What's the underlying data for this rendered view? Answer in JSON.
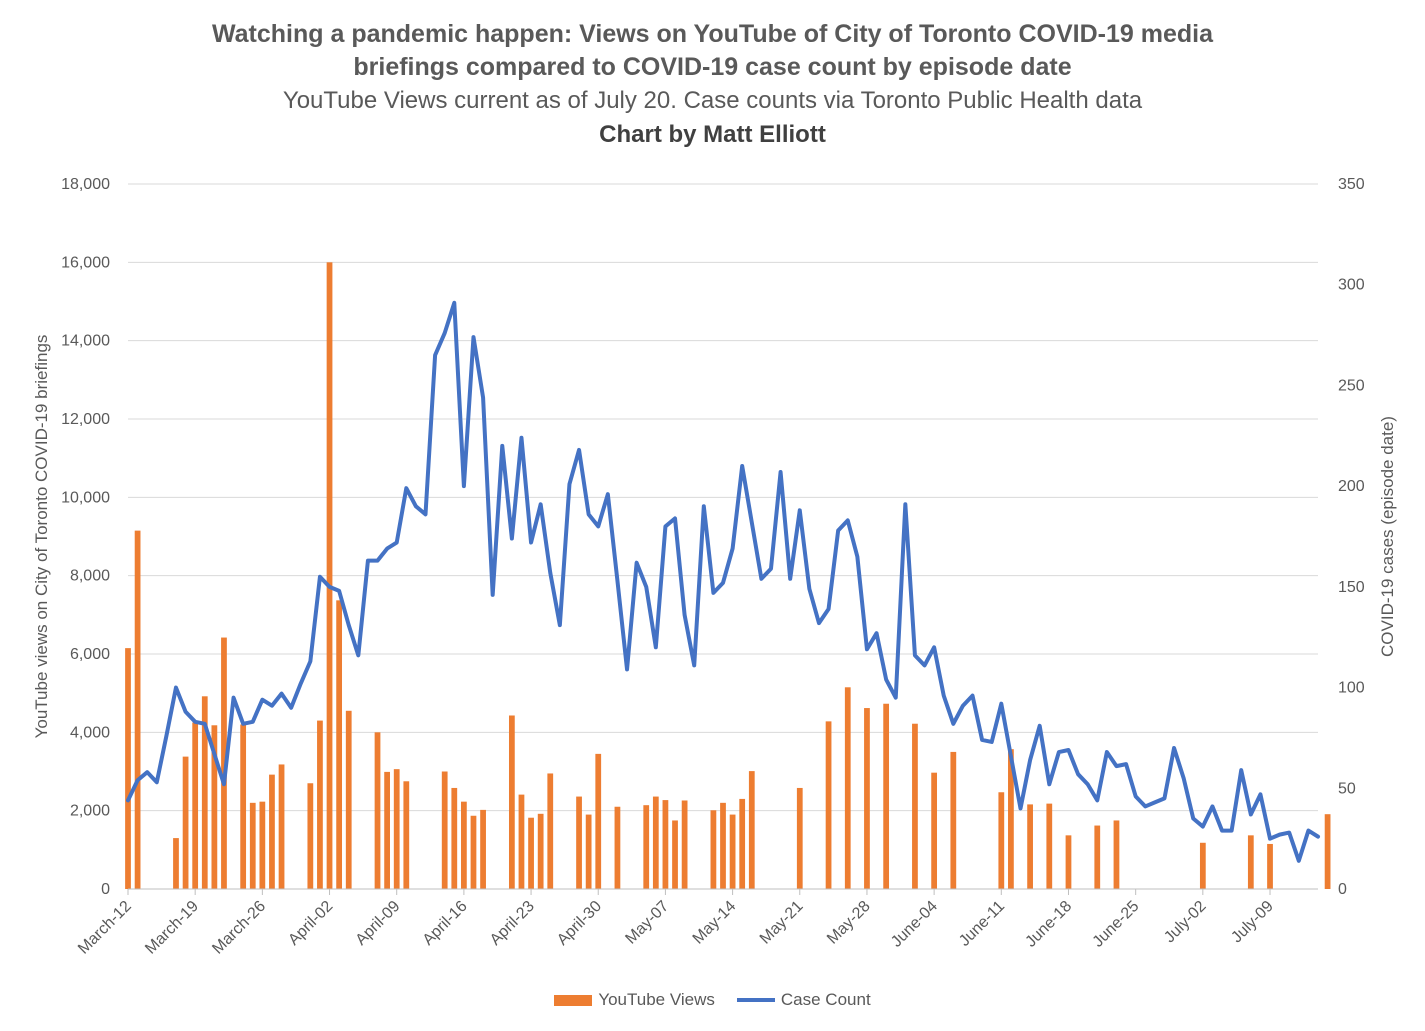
{
  "chart_data": {
    "type": "bar+line",
    "title_line1": "Watching a pandemic happen: Views on YouTube of City of Toronto COVID-19 media",
    "title_line2": "briefings compared to COVID-19 case count by episode date",
    "subtitle": "YouTube Views current as of July 20. Case counts via Toronto Public Health data",
    "credit": "Chart by Matt Elliott",
    "ylabel_left": "YouTube views on City of Toronto COVID-19 briefings",
    "ylabel_right": "COVID-19 cases (episode date)",
    "ylim_left": [
      0,
      18000
    ],
    "ylim_right": [
      0,
      350
    ],
    "yticks_left": [
      "0",
      "2,000",
      "4,000",
      "6,000",
      "8,000",
      "10,000",
      "12,000",
      "14,000",
      "16,000",
      "18,000"
    ],
    "yticks_right": [
      "0",
      "50",
      "100",
      "150",
      "200",
      "250",
      "300",
      "350"
    ],
    "x_tick_labels": [
      "March-12",
      "March-19",
      "March-26",
      "April-02",
      "April-09",
      "April-16",
      "April-23",
      "April-30",
      "May-07",
      "May-14",
      "May-21",
      "May-28",
      "June-04",
      "June-11",
      "June-18",
      "June-25",
      "July-02",
      "July-09"
    ],
    "start_date": "2020-03-12",
    "series": [
      {
        "name": "YouTube Views",
        "type": "bar",
        "color": "#ED7D31",
        "values": [
          6150,
          9150,
          null,
          null,
          null,
          1300,
          3380,
          4250,
          4920,
          4180,
          6420,
          null,
          4200,
          2200,
          2230,
          2920,
          3180,
          null,
          null,
          2700,
          4300,
          16000,
          7370,
          4550,
          null,
          null,
          4000,
          2990,
          3060,
          2750,
          null,
          null,
          null,
          3000,
          2580,
          2230,
          1870,
          2020,
          null,
          null,
          4430,
          2410,
          1820,
          1920,
          2950,
          null,
          null,
          2360,
          1900,
          3450,
          null,
          2100,
          null,
          null,
          2140,
          2360,
          2270,
          1750,
          2260,
          null,
          null,
          2010,
          2200,
          1900,
          2300,
          3010,
          null,
          null,
          null,
          null,
          2580,
          null,
          null,
          4280,
          null,
          5150,
          null,
          4620,
          null,
          4730,
          null,
          null,
          4220,
          null,
          2970,
          null,
          3500,
          null,
          null,
          null,
          null,
          2470,
          3570,
          null,
          2160,
          null,
          2180,
          null,
          1370,
          null,
          null,
          1620,
          null,
          1750,
          null,
          null,
          null,
          null,
          null,
          null,
          null,
          null,
          1180,
          null,
          null,
          null,
          null,
          1370,
          null,
          1150,
          null,
          null,
          null,
          null,
          null,
          1910
        ]
      },
      {
        "name": "Case Count",
        "type": "line",
        "color": "#4472C4",
        "values": [
          44,
          54,
          58,
          53,
          76,
          100,
          88,
          83,
          82,
          67,
          52,
          95,
          82,
          83,
          94,
          91,
          97,
          90,
          102,
          113,
          155,
          150,
          148,
          131,
          116,
          163,
          163,
          169,
          172,
          199,
          190,
          186,
          265,
          276,
          291,
          200,
          274,
          244,
          146,
          220,
          174,
          224,
          172,
          191,
          157,
          131,
          201,
          218,
          186,
          180,
          196,
          153,
          109,
          162,
          150,
          120,
          180,
          184,
          136,
          111,
          190,
          147,
          152,
          169,
          210,
          182,
          154,
          159,
          207,
          154,
          188,
          149,
          132,
          139,
          178,
          183,
          165,
          119,
          127,
          104,
          95,
          191,
          116,
          111,
          120,
          96,
          82,
          91,
          96,
          74,
          73,
          92,
          66,
          40,
          64,
          81,
          52,
          68,
          69,
          57,
          52,
          44,
          68,
          61,
          62,
          46,
          41,
          43,
          45,
          70,
          55,
          35,
          31,
          41,
          29,
          29,
          59,
          37,
          47,
          25,
          27,
          28,
          14,
          29,
          26
        ]
      }
    ],
    "legend_position": "bottom-center",
    "grid": "horizontal"
  }
}
